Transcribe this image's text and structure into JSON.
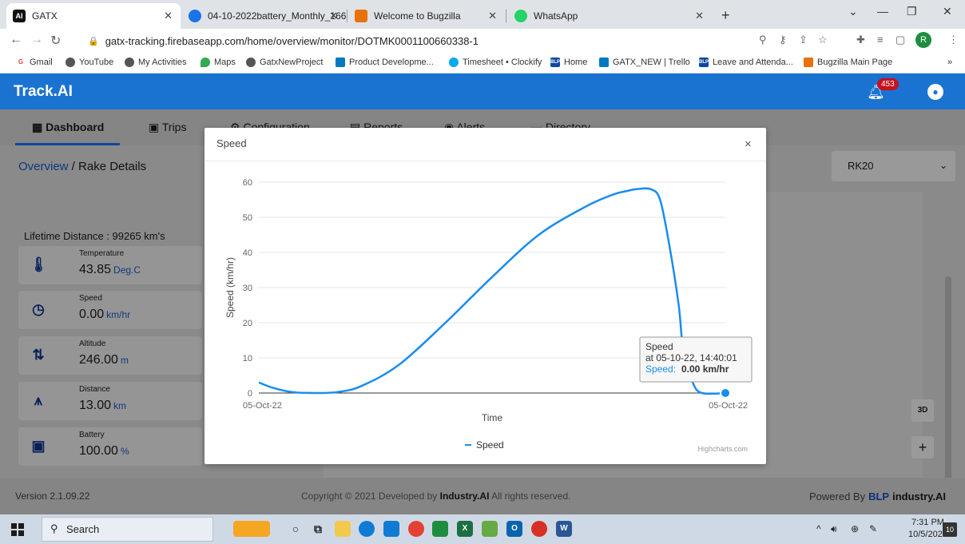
{
  "browser": {
    "tabs": [
      {
        "title": "GATX",
        "favicon": "AI",
        "color": "#111111"
      },
      {
        "title": "04-10-2022battery_Monthly_166",
        "favicon": "",
        "color": "#1a73e8"
      },
      {
        "title": "Welcome to Bugzilla",
        "favicon": "",
        "color": "#e8710a"
      },
      {
        "title": "WhatsApp",
        "favicon": "",
        "color": "#25d366"
      }
    ],
    "url": "gatx-tracking.firebaseapp.com/home/overview/monitor/DOTMK0001100660338-1",
    "profile_initial": "R",
    "bookmarks": [
      {
        "label": "Gmail",
        "icon": "G",
        "color": "#ea4335"
      },
      {
        "label": "YouTube",
        "icon": "",
        "color": "#555555"
      },
      {
        "label": "My Activities",
        "icon": "",
        "color": "#555555"
      },
      {
        "label": "Maps",
        "icon": "",
        "color": "#34a853"
      },
      {
        "label": "GatxNewProject",
        "icon": "",
        "color": "#555555"
      },
      {
        "label": "Product Developme...",
        "icon": "",
        "color": "#0079bf"
      },
      {
        "label": "Timesheet • Clockify",
        "icon": "",
        "color": "#03a9f4"
      },
      {
        "label": "Home",
        "icon": "BLP",
        "color": "#0d47a1"
      },
      {
        "label": "GATX_NEW | Trello",
        "icon": "",
        "color": "#0079bf"
      },
      {
        "label": "Leave and Attenda...",
        "icon": "BLP",
        "color": "#0d47a1"
      },
      {
        "label": "Bugzilla Main Page",
        "icon": "",
        "color": "#e8710a"
      }
    ],
    "bookmarks_more": "»"
  },
  "app": {
    "brand": "Track.AI",
    "notification_count": "453",
    "nav_tabs": [
      "Dashboard",
      "Trips",
      "Configuration",
      "Reports",
      "Alerts",
      "Directory"
    ],
    "breadcrumb": {
      "link": "Overview",
      "sep": " / ",
      "current": "Rake Details"
    },
    "rake_select": "RK20",
    "lifetime_distance": "Lifetime Distance : 99265 km's",
    "metrics": [
      {
        "label": "Temperature",
        "value": "43.85",
        "unit": "Deg.C",
        "icon": "thermometer-icon"
      },
      {
        "label": "Speed",
        "value": "0.00",
        "unit": "km/hr",
        "icon": "speedometer-icon"
      },
      {
        "label": "Altitude",
        "value": "246.00",
        "unit": "m",
        "icon": "altitude-icon"
      },
      {
        "label": "Distance",
        "value": "13.00",
        "unit": "km",
        "icon": "distance-icon"
      },
      {
        "label": "Battery",
        "value": "100.00",
        "unit": "%",
        "icon": "battery-icon"
      }
    ],
    "map_controls": {
      "three_d": "3D",
      "zoom_in": "+"
    },
    "footer": {
      "version": "Version 2.1.09.22",
      "copyright_pre": "Copyright © 2021 Developed by ",
      "copyright_brand": "Industry.AI",
      "copyright_post": " All rights reserved.",
      "powered_by": "Powered By",
      "powered_blp": "BLP",
      "powered_brand": "industry.AI"
    }
  },
  "modal": {
    "title": "Speed",
    "close": "×",
    "credit": "Highcharts.com",
    "tooltip": {
      "title": "Speed",
      "time": "at 05-10-22, 14:40:01",
      "series_label": "Speed:",
      "value": "0.00 km/hr"
    }
  },
  "chart_data": {
    "type": "line",
    "title": "",
    "xlabel": "Time",
    "ylabel": "Speed (km/hr)",
    "x_tick_labels": [
      "05-Oct-22",
      "05-Oct-22"
    ],
    "y_ticks": [
      0,
      10,
      20,
      30,
      40,
      50,
      60
    ],
    "ylim": [
      0,
      60
    ],
    "xlim": [
      0,
      100
    ],
    "grid": true,
    "legend": "bottom-center",
    "series": [
      {
        "name": "Speed",
        "color": "#1a8cf0",
        "x": [
          0,
          3,
          7,
          12,
          17,
          22,
          30,
          40,
          50,
          60,
          70,
          76,
          79,
          81,
          84,
          86,
          88,
          90,
          91,
          93,
          95,
          100
        ],
        "y": [
          3,
          1.5,
          0.3,
          0,
          0.3,
          2,
          8,
          20,
          33,
          45,
          53,
          56.5,
          57.5,
          58,
          58,
          55,
          42,
          25,
          12,
          3,
          0,
          0
        ]
      }
    ],
    "highlight": {
      "x": 100,
      "y": 0
    }
  },
  "taskbar": {
    "search": "Search",
    "clock_time": "7:31 PM",
    "clock_date": "10/5/2022",
    "notifications": "10",
    "apps": [
      {
        "name": "widgets",
        "color": "#f5a623"
      },
      {
        "name": "cortana",
        "color": "#333333"
      },
      {
        "name": "task-view",
        "color": "#333333"
      },
      {
        "name": "file-explorer",
        "color": "#f2c94c"
      },
      {
        "name": "edge",
        "color": "#0f7bd4"
      },
      {
        "name": "store",
        "color": "#0f7bd4"
      },
      {
        "name": "chrome",
        "color": "#e34133"
      },
      {
        "name": "app-green",
        "color": "#1e8e3e"
      },
      {
        "name": "excel",
        "color": "#1d6f42"
      },
      {
        "name": "notepad",
        "color": "#66aa44"
      },
      {
        "name": "outlook",
        "color": "#0a64ad"
      },
      {
        "name": "app-red",
        "color": "#d93025"
      },
      {
        "name": "word",
        "color": "#2b5797"
      }
    ]
  }
}
